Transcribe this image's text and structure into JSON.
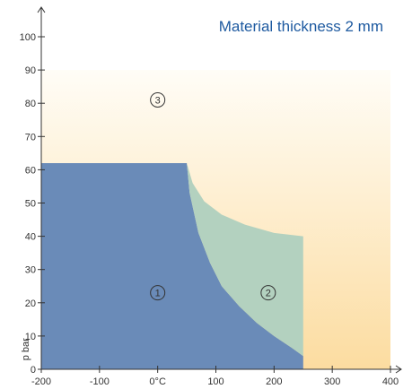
{
  "chart_data": {
    "type": "area",
    "title": "Material thickness 2 mm",
    "xlabel": "",
    "ylabel": "p bar",
    "xlim": [
      -200,
      400
    ],
    "ylim": [
      0,
      100
    ],
    "x_ticks": [
      {
        "value": -200,
        "label": "-200"
      },
      {
        "value": -100,
        "label": "-100"
      },
      {
        "value": 0,
        "label": "0°C"
      },
      {
        "value": 100,
        "label": "100"
      },
      {
        "value": 200,
        "label": "200"
      },
      {
        "value": 300,
        "label": "300"
      },
      {
        "value": 400,
        "label": "400"
      }
    ],
    "y_ticks": [
      {
        "value": 0,
        "label": "0"
      },
      {
        "value": 10,
        "label": "10"
      },
      {
        "value": 20,
        "label": "20"
      },
      {
        "value": 30,
        "label": "30"
      },
      {
        "value": 40,
        "label": "40"
      },
      {
        "value": 50,
        "label": "50"
      },
      {
        "value": 60,
        "label": "60"
      },
      {
        "value": 70,
        "label": "70"
      },
      {
        "value": 80,
        "label": "80"
      },
      {
        "value": 90,
        "label": "90"
      },
      {
        "value": 100,
        "label": "100"
      }
    ],
    "regions": [
      {
        "label": "1",
        "label_at": [
          0,
          23
        ],
        "color": "#6a8bb8",
        "points": [
          [
            -200,
            0
          ],
          [
            -200,
            62
          ],
          [
            50,
            62
          ],
          [
            55,
            53
          ],
          [
            70,
            41
          ],
          [
            90,
            32
          ],
          [
            110,
            25
          ],
          [
            140,
            19
          ],
          [
            170,
            14
          ],
          [
            200,
            10
          ],
          [
            230,
            6.5
          ],
          [
            250,
            4
          ],
          [
            250,
            0
          ]
        ]
      },
      {
        "label": "2",
        "label_at": [
          190,
          23
        ],
        "color": "#b3d1bf",
        "points": [
          [
            50,
            62
          ],
          [
            60,
            56
          ],
          [
            80,
            50.5
          ],
          [
            110,
            46.5
          ],
          [
            150,
            43.5
          ],
          [
            200,
            41
          ],
          [
            250,
            40
          ],
          [
            250,
            4
          ],
          [
            230,
            6.5
          ],
          [
            200,
            10
          ],
          [
            170,
            14
          ],
          [
            140,
            19
          ],
          [
            110,
            25
          ],
          [
            90,
            32
          ],
          [
            70,
            41
          ],
          [
            55,
            53
          ]
        ]
      },
      {
        "label": "3",
        "label_at": [
          0,
          81
        ],
        "color": "#fbe3ad"
      }
    ],
    "colors": {
      "title": "#1e5aa0",
      "axis": "#333333",
      "gradient_top": "#fffdf7",
      "gradient_bottom": "#fcdca0"
    }
  }
}
